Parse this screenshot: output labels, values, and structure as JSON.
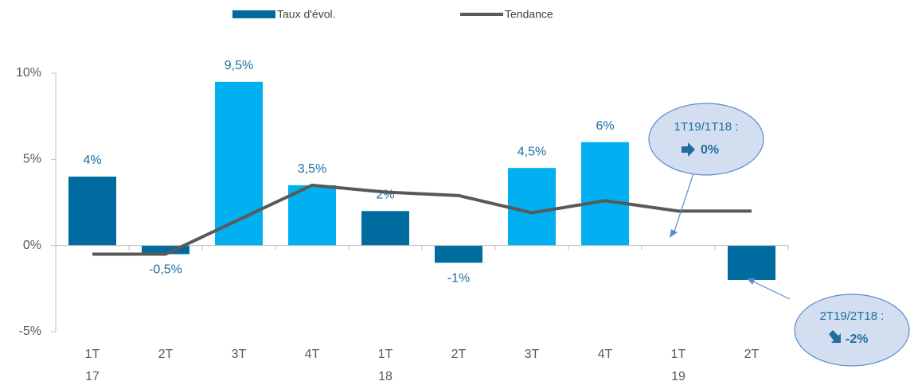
{
  "chart_data": {
    "type": "bar",
    "categories": [
      "1T",
      "2T",
      "3T",
      "4T",
      "1T",
      "2T",
      "3T",
      "4T",
      "1T",
      "2T"
    ],
    "years": [
      "17",
      null,
      null,
      null,
      "18",
      null,
      null,
      null,
      "19",
      null
    ],
    "series": [
      {
        "name": "Taux d'évol.",
        "type": "bar",
        "color": "#006b9f",
        "colors": [
          "#006b9f",
          "#006b9f",
          "#00b0f0",
          "#00b0f0",
          "#006b9f",
          "#006b9f",
          "#00b0f0",
          "#00b0f0",
          "#006b9f",
          "#006b9f"
        ],
        "values": [
          4,
          -0.5,
          9.5,
          3.5,
          2,
          -1,
          4.5,
          6,
          null,
          -2
        ],
        "value_labels": [
          "4%",
          "-0,5%",
          "9,5%",
          "3,5%",
          "2%",
          "-1%",
          "4,5%",
          "6%",
          null,
          null
        ]
      },
      {
        "name": "Tendance",
        "type": "line",
        "color": "#595959",
        "values": [
          -0.5,
          -0.5,
          1.5,
          3.5,
          3.1,
          2.9,
          1.9,
          2.6,
          2.0,
          2.0
        ]
      }
    ],
    "ylim": [
      -5,
      10
    ],
    "yticks": [
      {
        "value": -5,
        "label": "-5%"
      },
      {
        "value": 0,
        "label": "0%"
      },
      {
        "value": 5,
        "label": "5%"
      },
      {
        "value": 10,
        "label": "10%"
      }
    ],
    "annotations": [
      {
        "title": "1T19/1T18 :",
        "value_text": "0%"
      },
      {
        "title": "2T19/2T18 :",
        "value_text": "-2%"
      }
    ]
  }
}
